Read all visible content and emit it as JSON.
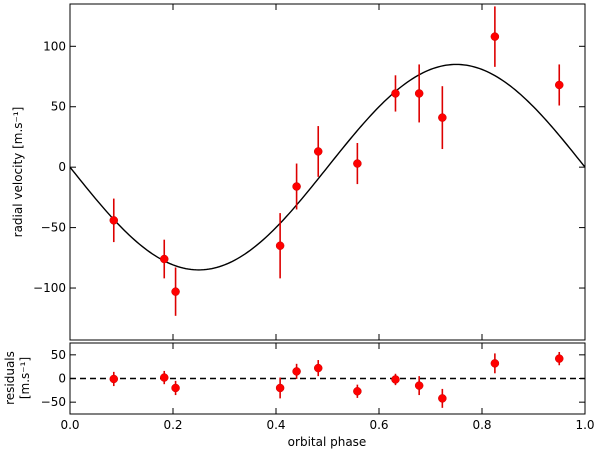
{
  "chart_data": [
    {
      "type": "scatter",
      "panel": "main",
      "xlabel": "",
      "ylabel": "radial velocity [m.s⁻¹]",
      "xlim": [
        0.0,
        1.0
      ],
      "ylim": [
        -143,
        135
      ],
      "yticks": [
        100,
        50,
        0,
        -50,
        -100
      ],
      "ytick_labels": [
        "100",
        "50",
        "0",
        "−50",
        "−100"
      ],
      "model": {
        "type": "sinusoid",
        "amplitude": 85,
        "note_points": [
          [
            0.0,
            0
          ],
          [
            0.25,
            -85
          ],
          [
            0.5,
            0
          ],
          [
            0.75,
            85
          ],
          [
            1.0,
            0
          ]
        ]
      },
      "marker_color": "#ff0000",
      "errorbar_color": "#dd0000",
      "points": [
        {
          "x": 0.085,
          "y": -44,
          "err": 18
        },
        {
          "x": 0.183,
          "y": -76,
          "err": 16
        },
        {
          "x": 0.205,
          "y": -103,
          "err": 20
        },
        {
          "x": 0.408,
          "y": -65,
          "err": 27
        },
        {
          "x": 0.44,
          "y": -16,
          "err": 19
        },
        {
          "x": 0.482,
          "y": 13,
          "err": 21
        },
        {
          "x": 0.558,
          "y": 3,
          "err": 17
        },
        {
          "x": 0.632,
          "y": 61,
          "err": 15
        },
        {
          "x": 0.678,
          "y": 61,
          "err": 24
        },
        {
          "x": 0.723,
          "y": 41,
          "err": 26
        },
        {
          "x": 0.825,
          "y": 108,
          "err": 25
        },
        {
          "x": 0.95,
          "y": 68,
          "err": 17
        }
      ]
    },
    {
      "type": "scatter",
      "panel": "residuals",
      "xlabel": "orbital phase",
      "ylabel": [
        "residuals",
        "[m.s⁻¹]"
      ],
      "xlim": [
        0.0,
        1.0
      ],
      "ylim": [
        -75,
        75
      ],
      "xticks": [
        0.0,
        0.2,
        0.4,
        0.6,
        0.8,
        1.0
      ],
      "xtick_labels": [
        "0.0",
        "0.2",
        "0.4",
        "0.6",
        "0.8",
        "1.0"
      ],
      "yticks": [
        50,
        0,
        -50
      ],
      "ytick_labels": [
        "50",
        "0",
        "−50"
      ],
      "zero_line": "dashed",
      "marker_color": "#ff0000",
      "errorbar_color": "#dd0000",
      "points": [
        {
          "x": 0.085,
          "y": -1,
          "err": 15
        },
        {
          "x": 0.183,
          "y": 2,
          "err": 14
        },
        {
          "x": 0.205,
          "y": -20,
          "err": 15
        },
        {
          "x": 0.408,
          "y": -20,
          "err": 22
        },
        {
          "x": 0.44,
          "y": 15,
          "err": 16
        },
        {
          "x": 0.482,
          "y": 22,
          "err": 17
        },
        {
          "x": 0.558,
          "y": -27,
          "err": 14
        },
        {
          "x": 0.632,
          "y": -2,
          "err": 12
        },
        {
          "x": 0.678,
          "y": -15,
          "err": 20
        },
        {
          "x": 0.723,
          "y": -42,
          "err": 20
        },
        {
          "x": 0.825,
          "y": 32,
          "err": 21
        },
        {
          "x": 0.95,
          "y": 42,
          "err": 14
        }
      ]
    }
  ]
}
